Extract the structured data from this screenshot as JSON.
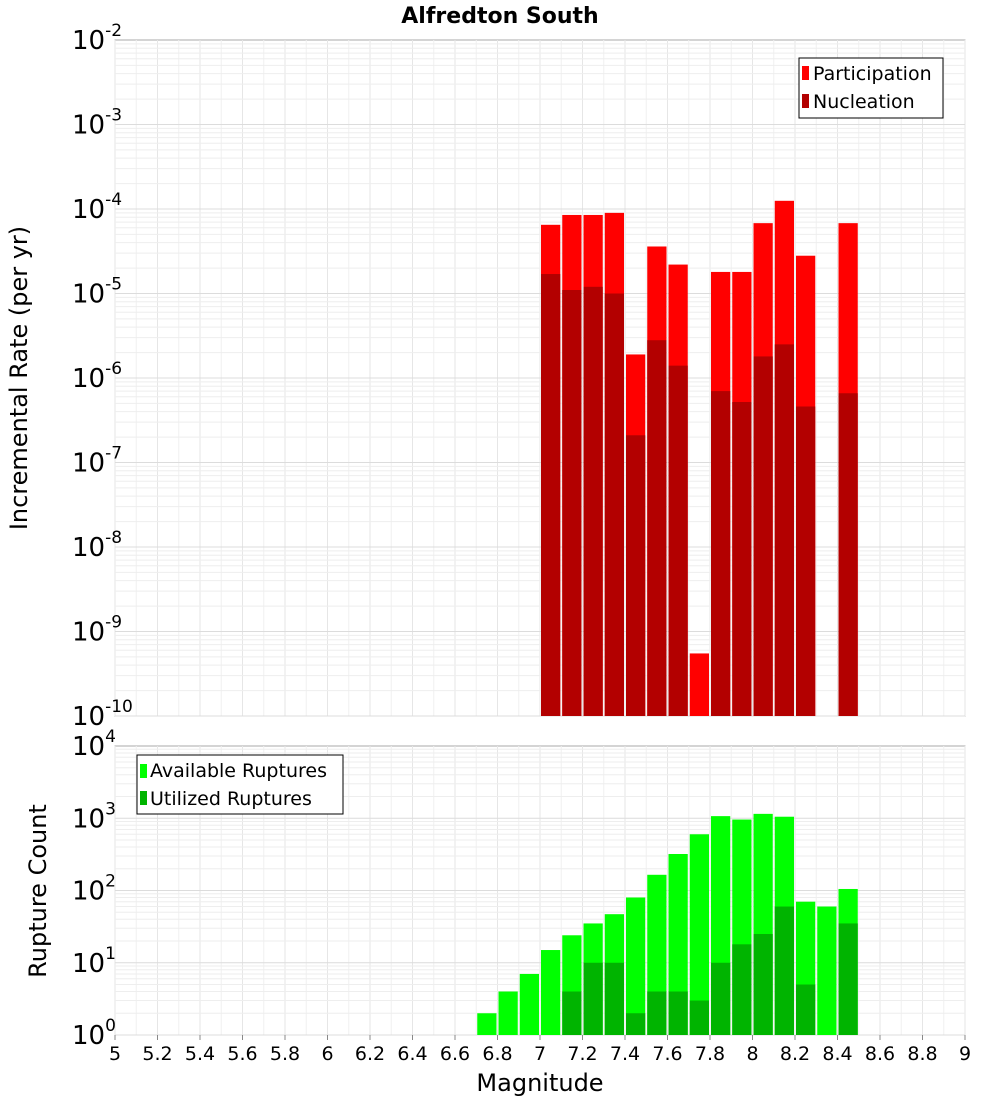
{
  "chart_data": [
    {
      "type": "bar",
      "title": "Alfredton South",
      "ylabel": "Incremental Rate (per yr)",
      "xlabel": "",
      "yscale": "log",
      "ylim_exp": [
        -10,
        -2
      ],
      "xlim": [
        5,
        9
      ],
      "legend_position": "top-right",
      "bin_width": 0.1,
      "series": [
        {
          "name": "Participation",
          "color": "#ff0000",
          "x": [
            7.05,
            7.15,
            7.25,
            7.35,
            7.45,
            7.55,
            7.65,
            7.75,
            7.85,
            7.95,
            8.05,
            8.15,
            8.25,
            8.45
          ],
          "values": [
            6.5e-05,
            8.5e-05,
            8.5e-05,
            9e-05,
            1.9e-06,
            3.6e-05,
            2.2e-05,
            5.5e-10,
            1.8e-05,
            1.8e-05,
            6.8e-05,
            0.000125,
            2.8e-05,
            6.8e-05
          ]
        },
        {
          "name": "Nucleation",
          "color": "#b30000",
          "x": [
            7.05,
            7.15,
            7.25,
            7.35,
            7.45,
            7.55,
            7.65,
            7.85,
            7.95,
            8.05,
            8.15,
            8.25,
            8.45
          ],
          "values": [
            1.7e-05,
            1.1e-05,
            1.2e-05,
            1e-05,
            2.1e-07,
            2.8e-06,
            1.4e-06,
            7e-07,
            5.2e-07,
            1.8e-06,
            2.5e-06,
            4.6e-07,
            6.6e-07
          ]
        }
      ]
    },
    {
      "type": "bar",
      "title": "",
      "ylabel": "Rupture Count",
      "xlabel": "Magnitude",
      "yscale": "log",
      "ylim_exp": [
        0,
        4
      ],
      "xlim": [
        5,
        9
      ],
      "legend_position": "top-left",
      "bin_width": 0.1,
      "x_ticks": [
        "5",
        "5.2",
        "5.4",
        "5.6",
        "5.8",
        "6",
        "6.2",
        "6.4",
        "6.6",
        "6.8",
        "7",
        "7.2",
        "7.4",
        "7.6",
        "7.8",
        "8",
        "8.2",
        "8.4",
        "8.6",
        "8.8",
        "9"
      ],
      "series": [
        {
          "name": "Available Ruptures",
          "color": "#00ff00",
          "x": [
            6.45,
            6.65,
            6.75,
            6.85,
            6.95,
            7.05,
            7.15,
            7.25,
            7.35,
            7.45,
            7.55,
            7.65,
            7.75,
            7.85,
            7.95,
            8.05,
            8.15,
            8.25,
            8.35,
            8.45
          ],
          "values": [
            1,
            1,
            2,
            4,
            7,
            15,
            24,
            35,
            47,
            80,
            165,
            320,
            600,
            1070,
            960,
            1150,
            1050,
            70,
            60,
            105
          ]
        },
        {
          "name": "Utilized Ruptures",
          "color": "#00b400",
          "x": [
            7.05,
            7.15,
            7.25,
            7.35,
            7.45,
            7.55,
            7.65,
            7.75,
            7.85,
            7.95,
            8.05,
            8.15,
            8.25,
            8.45
          ],
          "values": [
            1,
            4,
            10,
            10,
            2,
            4,
            4,
            3,
            10,
            18,
            25,
            60,
            5,
            35
          ]
        }
      ]
    }
  ]
}
